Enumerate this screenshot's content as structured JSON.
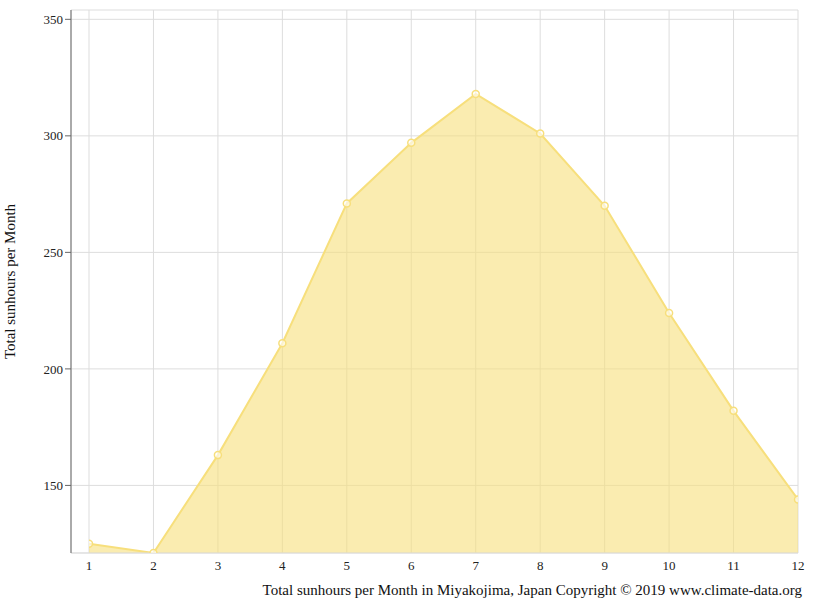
{
  "chart_data": {
    "type": "area",
    "xlabel": "Total sunhours per Month in Miyakojima, Japan Copyright © 2019 www.climate-data.org",
    "ylabel": "Total sunhours per Month",
    "x": [
      1,
      2,
      3,
      4,
      5,
      6,
      7,
      8,
      9,
      10,
      11,
      12
    ],
    "values": [
      125,
      121,
      163,
      211,
      271,
      297,
      318,
      301,
      270,
      224,
      182,
      144
    ],
    "color": "#f7df7c",
    "xlim": [
      1,
      12
    ],
    "xticks": [
      1,
      2,
      3,
      4,
      5,
      6,
      7,
      8,
      9,
      10,
      11,
      12
    ],
    "ylim": [
      121,
      354
    ],
    "yticks": [
      150,
      200,
      250,
      300,
      350
    ],
    "grid": true,
    "marker": "circle"
  }
}
